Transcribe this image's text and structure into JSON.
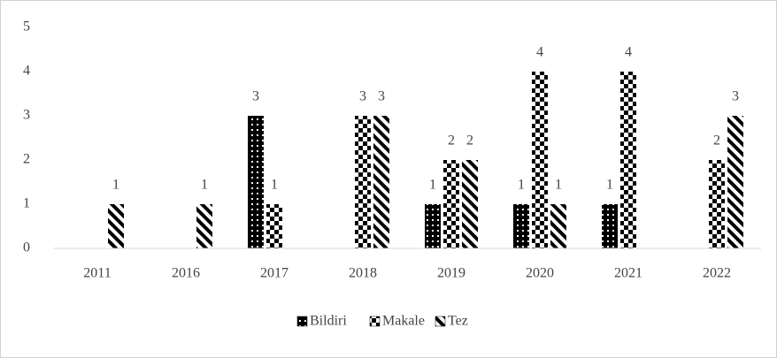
{
  "chart_data": {
    "type": "bar",
    "categories": [
      "2011",
      "2016",
      "2017",
      "2018",
      "2019",
      "2020",
      "2021",
      "2022"
    ],
    "series": [
      {
        "name": "Bildiri",
        "values": [
          null,
          null,
          3,
          null,
          1,
          1,
          1,
          null
        ]
      },
      {
        "name": "Makale",
        "values": [
          null,
          null,
          1,
          3,
          2,
          4,
          4,
          2
        ]
      },
      {
        "name": "Tez",
        "values": [
          1,
          1,
          null,
          3,
          2,
          1,
          null,
          3
        ]
      }
    ],
    "ylim": [
      0,
      5
    ],
    "yticks": [
      0,
      1,
      2,
      3,
      4,
      5
    ],
    "grid": false,
    "legend": "bottom"
  }
}
